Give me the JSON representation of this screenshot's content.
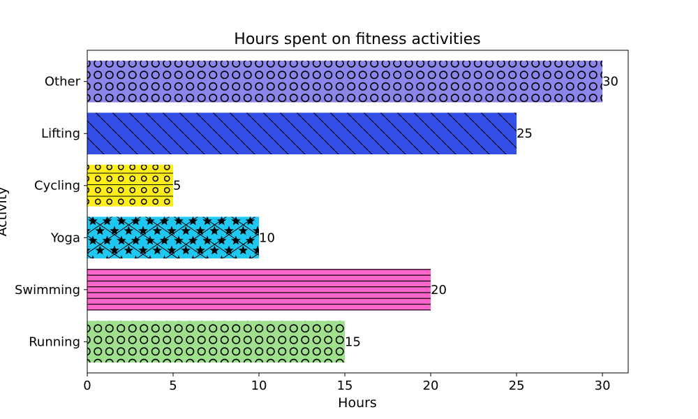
{
  "chart_data": {
    "type": "bar",
    "orientation": "horizontal",
    "title": "Hours spent on fitness activities",
    "xlabel": "Hours",
    "ylabel": "Activity",
    "xlim": [
      0,
      31.5
    ],
    "x_ticks": [
      0,
      5,
      10,
      15,
      20,
      25,
      30
    ],
    "grid": false,
    "legend": null,
    "categories": [
      "Running",
      "Swimming",
      "Yoga",
      "Cycling",
      "Lifting",
      "Other"
    ],
    "values": [
      15,
      20,
      10,
      5,
      25,
      30
    ],
    "colors": [
      "#9ee08c",
      "#ff66cc",
      "#1ec8f0",
      "#ffee1a",
      "#3350e6",
      "#8c85ea"
    ],
    "patterns": [
      "circles",
      "horizontal-lines",
      "stars-crosshatch",
      "small-circles-lines",
      "backslash",
      "circles"
    ]
  }
}
